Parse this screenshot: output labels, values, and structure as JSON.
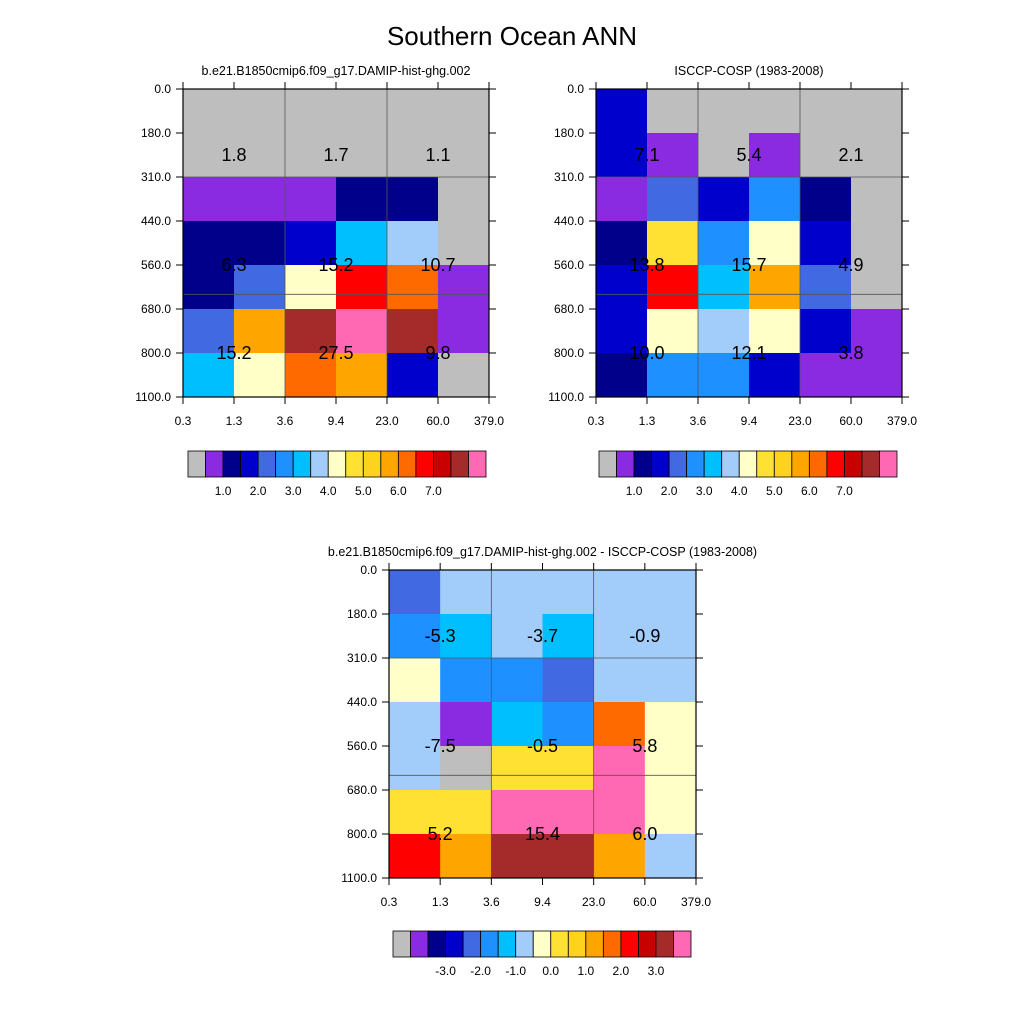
{
  "title": "Southern Ocean ANN",
  "colors": {
    "model_palette": [
      "#bebebe",
      "#8a2be2",
      "#00008b",
      "#0000cd",
      "#4169e1",
      "#1e90ff",
      "#00bfff",
      "#a2cdfa",
      "#ffffc8",
      "#ffe134",
      "#ffd21e",
      "#ffa500",
      "#ff6a00",
      "#ff0000",
      "#c80000",
      "#a52a2a",
      "#ff69b4"
    ],
    "diff_palette": [
      "#bebebe",
      "#8a2be2",
      "#00008b",
      "#0000cd",
      "#4169e1",
      "#1e90ff",
      "#00bfff",
      "#a2cdfa",
      "#ffffc8",
      "#ffe134",
      "#ffd21e",
      "#ffa500",
      "#ff6a00",
      "#ff0000",
      "#c80000",
      "#a52a2a",
      "#ff69b4"
    ]
  },
  "chart_data": [
    {
      "type": "heatmap",
      "title": "b.e21.B1850cmip6.f09_g17.DAMIP-hist-ghg.002",
      "x_ticks": [
        "0.3",
        "1.3",
        "3.6",
        "9.4",
        "23.0",
        "60.0",
        "379.0"
      ],
      "y_ticks": [
        "0.0",
        "180.0",
        "310.0",
        "440.0",
        "560.0",
        "680.0",
        "800.0",
        "1100.0"
      ],
      "cells": [
        [
          "#bebebe",
          "#bebebe",
          "#bebebe",
          "#bebebe",
          "#bebebe",
          "#bebebe"
        ],
        [
          "#bebebe",
          "#bebebe",
          "#bebebe",
          "#bebebe",
          "#bebebe",
          "#bebebe"
        ],
        [
          "#8a2be2",
          "#8a2be2",
          "#8a2be2",
          "#00008b",
          "#00008b",
          "#bebebe"
        ],
        [
          "#00008b",
          "#00008b",
          "#0000cd",
          "#00bfff",
          "#a2cdfa",
          "#bebebe"
        ],
        [
          "#00008b",
          "#4169e1",
          "#ffffc8",
          "#ff0000",
          "#ff6a00",
          "#8a2be2"
        ],
        [
          "#4169e1",
          "#ffa500",
          "#a52a2a",
          "#ff69b4",
          "#a52a2a",
          "#8a2be2"
        ],
        [
          "#00bfff",
          "#ffffc8",
          "#ff6a00",
          "#ffa500",
          "#0000cd",
          "#bebebe"
        ]
      ],
      "annotations": [
        [
          "1.8",
          "1.7",
          "1.1"
        ],
        [
          "6.3",
          "15.2",
          "10.7"
        ],
        [
          "15.2",
          "27.5",
          "9.8"
        ]
      ],
      "colorbar_labels": [
        "1.0",
        "2.0",
        "3.0",
        "4.0",
        "5.0",
        "6.0",
        "7.0"
      ]
    },
    {
      "type": "heatmap",
      "title": "ISCCP-COSP (1983-2008)",
      "x_ticks": [
        "0.3",
        "1.3",
        "3.6",
        "9.4",
        "23.0",
        "60.0",
        "379.0"
      ],
      "y_ticks": [
        "0.0",
        "180.0",
        "310.0",
        "440.0",
        "560.0",
        "680.0",
        "800.0",
        "1100.0"
      ],
      "cells": [
        [
          "#0000cd",
          "#bebebe",
          "#bebebe",
          "#bebebe",
          "#bebebe",
          "#bebebe"
        ],
        [
          "#0000cd",
          "#8a2be2",
          "#bebebe",
          "#8a2be2",
          "#bebebe",
          "#bebebe"
        ],
        [
          "#8a2be2",
          "#4169e1",
          "#0000cd",
          "#1e90ff",
          "#00008b",
          "#bebebe"
        ],
        [
          "#00008b",
          "#ffe134",
          "#1e90ff",
          "#ffffc8",
          "#0000cd",
          "#bebebe"
        ],
        [
          "#0000cd",
          "#ff0000",
          "#00bfff",
          "#ffa500",
          "#4169e1",
          "#bebebe"
        ],
        [
          "#0000cd",
          "#ffffc8",
          "#a2cdfa",
          "#ffffc8",
          "#0000cd",
          "#8a2be2"
        ],
        [
          "#00008b",
          "#1e90ff",
          "#1e90ff",
          "#0000cd",
          "#8a2be2",
          "#8a2be2"
        ]
      ],
      "annotations": [
        [
          "7.1",
          "5.4",
          "2.1"
        ],
        [
          "13.8",
          "15.7",
          "4.9"
        ],
        [
          "10.0",
          "12.1",
          "3.8"
        ]
      ],
      "colorbar_labels": [
        "1.0",
        "2.0",
        "3.0",
        "4.0",
        "5.0",
        "6.0",
        "7.0"
      ]
    },
    {
      "type": "heatmap",
      "title": "b.e21.B1850cmip6.f09_g17.DAMIP-hist-ghg.002 - ISCCP-COSP (1983-2008)",
      "x_ticks": [
        "0.3",
        "1.3",
        "3.6",
        "9.4",
        "23.0",
        "60.0",
        "379.0"
      ],
      "y_ticks": [
        "0.0",
        "180.0",
        "310.0",
        "440.0",
        "560.0",
        "680.0",
        "800.0",
        "1100.0"
      ],
      "cells": [
        [
          "#4169e1",
          "#a2cdfa",
          "#a2cdfa",
          "#a2cdfa",
          "#a2cdfa",
          "#a2cdfa"
        ],
        [
          "#1e90ff",
          "#00bfff",
          "#a2cdfa",
          "#00bfff",
          "#a2cdfa",
          "#a2cdfa"
        ],
        [
          "#ffffc8",
          "#1e90ff",
          "#1e90ff",
          "#4169e1",
          "#a2cdfa",
          "#a2cdfa"
        ],
        [
          "#a2cdfa",
          "#8a2be2",
          "#00bfff",
          "#1e90ff",
          "#ff6a00",
          "#ffffc8"
        ],
        [
          "#a2cdfa",
          "#bebebe",
          "#ffe134",
          "#ffe134",
          "#ff69b4",
          "#ffffc8"
        ],
        [
          "#ffe134",
          "#ffe134",
          "#ff69b4",
          "#ff69b4",
          "#ff69b4",
          "#ffffc8"
        ],
        [
          "#ff0000",
          "#ffa500",
          "#a52a2a",
          "#a52a2a",
          "#ffa500",
          "#a2cdfa"
        ]
      ],
      "annotations": [
        [
          "-5.3",
          "-3.7",
          "-0.9"
        ],
        [
          "-7.5",
          "-0.5",
          "5.8"
        ],
        [
          "5.2",
          "15.4",
          "6.0"
        ]
      ],
      "colorbar_labels": [
        "-3.0",
        "-2.0",
        "-1.0",
        "0.0",
        "1.0",
        "2.0",
        "3.0"
      ]
    }
  ]
}
